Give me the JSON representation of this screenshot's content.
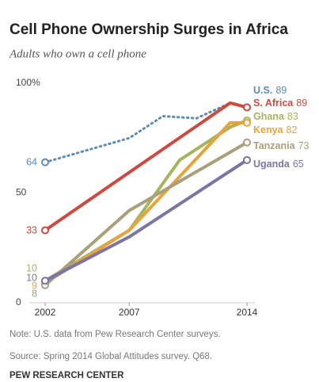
{
  "chart_data": {
    "type": "line",
    "title": "Cell Phone Ownership Surges in Africa",
    "subtitle": "Adults who own a cell phone",
    "xlim": [
      2002,
      2014
    ],
    "xticks": [
      2002,
      2007,
      2014
    ],
    "ylim": [
      0,
      100
    ],
    "yticks": [
      0,
      50,
      {
        "value": 100,
        "label": "100%"
      }
    ],
    "grid": false,
    "series": [
      {
        "name": "U.S.",
        "color": "#5b8db8",
        "dotted": true,
        "x": [
          2002,
          2007,
          2009,
          2011,
          2013,
          2014
        ],
        "values": [
          64,
          75,
          85,
          84,
          91,
          89
        ]
      },
      {
        "name": "S. Africa",
        "color": "#d0493e",
        "x": [
          2002,
          2013,
          2014
        ],
        "values": [
          33,
          91,
          89
        ]
      },
      {
        "name": "Ghana",
        "color": "#a6b45c",
        "x": [
          2002,
          2007,
          2010,
          2013,
          2014
        ],
        "values": [
          10,
          33,
          65,
          80,
          83
        ]
      },
      {
        "name": "Kenya",
        "color": "#e8a33d",
        "x": [
          2002,
          2007,
          2013,
          2014
        ],
        "values": [
          9,
          33,
          82,
          82
        ]
      },
      {
        "name": "Tanzania",
        "color": "#a99f7a",
        "x": [
          2002,
          2007,
          2014
        ],
        "values": [
          8,
          42,
          73
        ]
      },
      {
        "name": "Uganda",
        "color": "#7c74a4",
        "x": [
          2002,
          2007,
          2014
        ],
        "values": [
          10,
          30,
          65
        ]
      }
    ],
    "notes": [
      "Note: U.S. data from Pew Research Center surveys.",
      "Source: Spring 2014 Global Attitudes survey. Q68."
    ],
    "credit": "PEW RESEARCH CENTER"
  }
}
